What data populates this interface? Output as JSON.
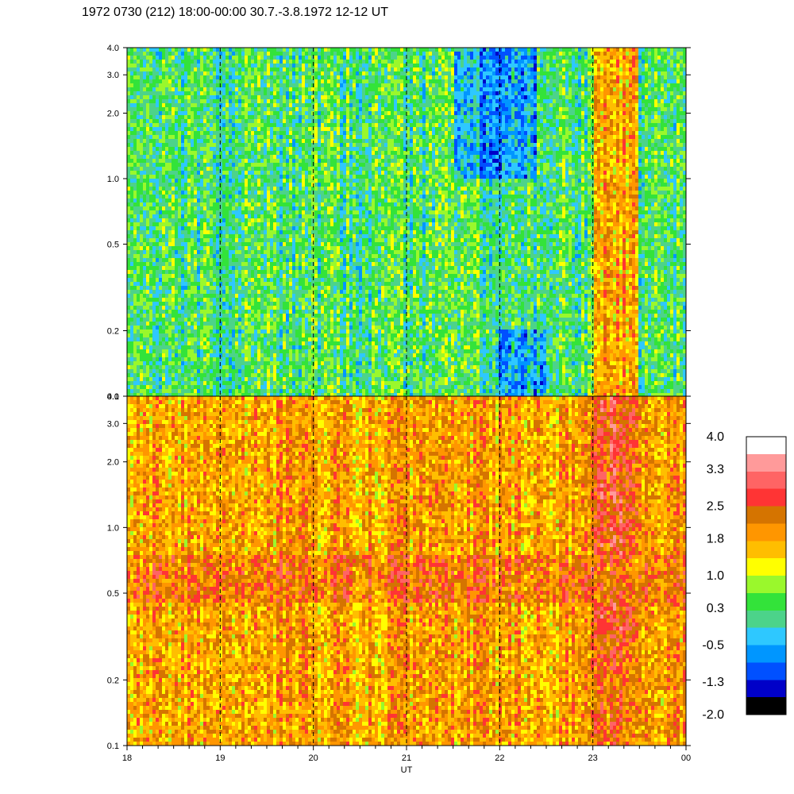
{
  "title": "1972 0730 (212) 18:00-00:00 30.7.-3.8.1972  12-12 UT",
  "chart_data": {
    "type": "heatmap",
    "title": "1972 0730 (212) 18:00-00:00 30.7.-3.8.1972  12-12 UT",
    "xlabel": "UT",
    "x_ticks": [
      "18",
      "19",
      "20",
      "21",
      "22",
      "23",
      "00"
    ],
    "x_range": [
      18,
      24
    ],
    "y_scale": "log",
    "panels": [
      {
        "name": "",
        "ylim": [
          0.1,
          4.0
        ],
        "y_ticks": [
          "0.1",
          "0.2",
          "0.5",
          "1.0",
          "2.0",
          "3.0",
          "4.0"
        ],
        "background_level": 0.3,
        "features": [
          {
            "x_range": [
              23.0,
              23.5
            ],
            "y_range": [
              0.1,
              4.0
            ],
            "level": 1.8
          },
          {
            "x_range": [
              21.5,
              22.4
            ],
            "y_range": [
              1.0,
              4.0
            ],
            "level": -0.5
          },
          {
            "x_range": [
              22.0,
              22.5
            ],
            "y_range": [
              0.1,
              0.2
            ],
            "level": -0.5
          }
        ]
      },
      {
        "name": "",
        "ylim": [
          0.1,
          4.0
        ],
        "y_ticks": [
          "0.1",
          "0.2",
          "0.5",
          "1.0",
          "2.0",
          "3.0",
          "4.0"
        ],
        "background_level": 1.8,
        "features": [
          {
            "x_range": [
              23.0,
              23.5
            ],
            "y_range": [
              0.3,
              4.0
            ],
            "level": 2.5
          },
          {
            "x_range": [
              23.0,
              23.5
            ],
            "y_range": [
              0.1,
              0.3
            ],
            "level": 2.2
          },
          {
            "x_range": [
              18.0,
              24.0
            ],
            "y_range": [
              0.45,
              0.75
            ],
            "level": 2.2
          }
        ]
      }
    ],
    "colorbar": {
      "labels": [
        "4.0",
        "3.3",
        "2.5",
        "1.8",
        "1.0",
        "0.3",
        "-0.5",
        "-1.3",
        "-2.0"
      ],
      "colors": [
        "#ffffff",
        "#ff9a9a",
        "#ff6464",
        "#ff3434",
        "#d57400",
        "#ff9600",
        "#ffbe00",
        "#ffff00",
        "#9af82c",
        "#33e33a",
        "#4cd38a",
        "#2ec8ff",
        "#0096ff",
        "#0050ff",
        "#0000c8",
        "#000000"
      ],
      "range": [
        -2.0,
        4.0
      ]
    }
  }
}
